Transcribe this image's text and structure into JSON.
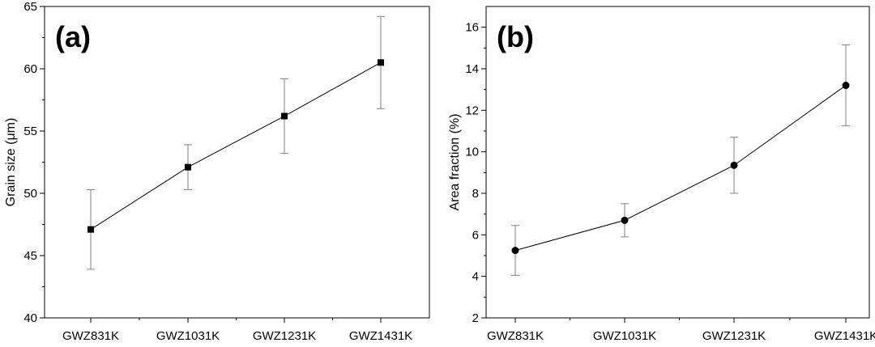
{
  "chart_data": [
    {
      "type": "line",
      "panel_label": "(a)",
      "title": "",
      "xlabel": "",
      "ylabel": "Grain size (μm)",
      "categories": [
        "GWZ831K",
        "GWZ1031K",
        "GWZ1231K",
        "GWZ1431K"
      ],
      "ylim": [
        40,
        65
      ],
      "yticks": [
        40,
        45,
        50,
        55,
        60,
        65
      ],
      "marker": "square",
      "grid": false,
      "series": [
        {
          "values": [
            47.1,
            52.1,
            56.2,
            60.5
          ],
          "error": [
            3.2,
            1.8,
            3.0,
            3.7
          ]
        }
      ]
    },
    {
      "type": "line",
      "panel_label": "(b)",
      "title": "",
      "xlabel": "",
      "ylabel": "Area fraction (%)",
      "categories": [
        "GWZ831K",
        "GWZ1031K",
        "GWZ1231K",
        "GWZ1431K"
      ],
      "ylim": [
        2,
        17
      ],
      "yticks": [
        2,
        4,
        6,
        8,
        10,
        12,
        14,
        16
      ],
      "marker": "circle",
      "grid": false,
      "series": [
        {
          "values": [
            5.25,
            6.7,
            9.35,
            13.2
          ],
          "error": [
            1.2,
            0.8,
            1.35,
            1.95
          ]
        }
      ]
    }
  ],
  "colors": {
    "axis": "#000000",
    "line": "#000000",
    "marker": "#000000",
    "error_bar": "#808080"
  }
}
